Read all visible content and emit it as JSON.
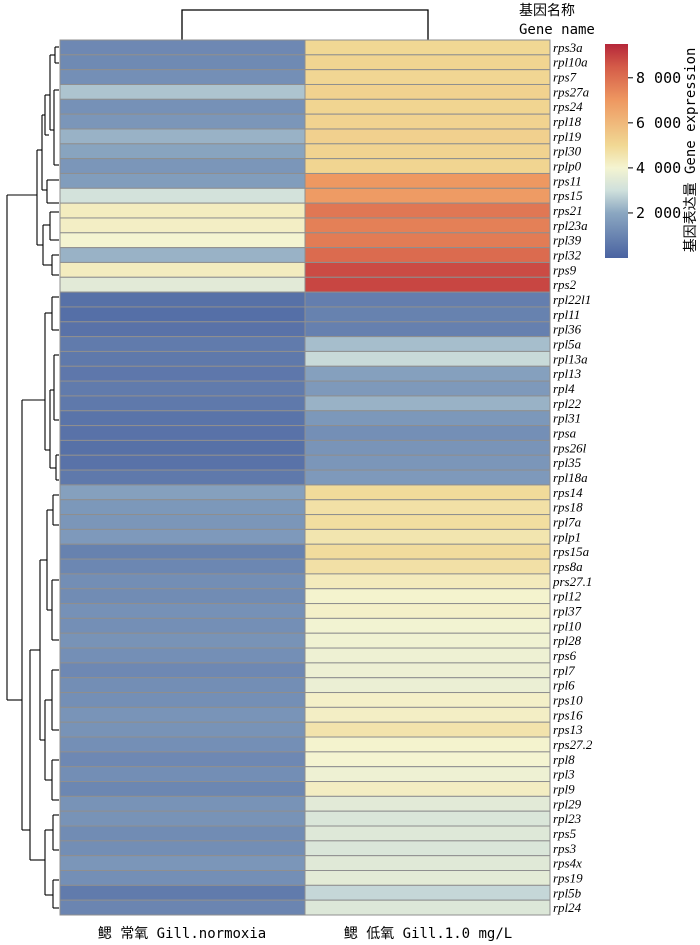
{
  "chart_data": {
    "type": "heatmap",
    "header_cn": "基因名称",
    "header_en": "Gene name",
    "columns": [
      "鳃 常氧 Gill.normoxia",
      "鳃 低氧 Gill.1.0 mg/L"
    ],
    "genes": [
      "rps3a",
      "rpl10a",
      "rps7",
      "rps27a",
      "rps24",
      "rpl18",
      "rpl19",
      "rpl30",
      "rplp0",
      "rps11",
      "rps15",
      "rps21",
      "rpl23a",
      "rpl39",
      "rpl32",
      "rps9",
      "rps2",
      "rpl22l1",
      "rpl11",
      "rpl36",
      "rpl5a",
      "rpl13a",
      "rpl13",
      "rpl4",
      "rpl22",
      "rpl31",
      "rpsa",
      "rps26l",
      "rpl35",
      "rpl18a",
      "rps14",
      "rps18",
      "rpl7a",
      "rplp1",
      "rps15a",
      "rps8a",
      "prs27.1",
      "rpl12",
      "rpl37",
      "rpl10",
      "rpl28",
      "rps6",
      "rpl7",
      "rpl6",
      "rps10",
      "rps16",
      "rps13",
      "rps27.2",
      "rpl8",
      "rpl3",
      "rpl9",
      "rpl29",
      "rpl23",
      "rps5",
      "rps3",
      "rps4x",
      "rps19",
      "rpl5b",
      "rpl24"
    ],
    "values": [
      [
        1100,
        5000
      ],
      [
        1150,
        5100
      ],
      [
        1300,
        5050
      ],
      [
        2500,
        5200
      ],
      [
        1350,
        5100
      ],
      [
        1500,
        5150
      ],
      [
        2200,
        5250
      ],
      [
        1900,
        5150
      ],
      [
        1500,
        5100
      ],
      [
        1700,
        7000
      ],
      [
        3100,
        6900
      ],
      [
        4300,
        7800
      ],
      [
        4200,
        7600
      ],
      [
        4000,
        7700
      ],
      [
        2200,
        8100
      ],
      [
        4300,
        8800
      ],
      [
        3500,
        8900
      ],
      [
        400,
        800
      ],
      [
        350,
        900
      ],
      [
        450,
        850
      ],
      [
        700,
        2400
      ],
      [
        650,
        2900
      ],
      [
        600,
        1800
      ],
      [
        700,
        1600
      ],
      [
        650,
        2200
      ],
      [
        500,
        1550
      ],
      [
        450,
        1300
      ],
      [
        400,
        1450
      ],
      [
        450,
        1500
      ],
      [
        650,
        1600
      ],
      [
        1800,
        4900
      ],
      [
        1550,
        4700
      ],
      [
        1500,
        4800
      ],
      [
        1600,
        4550
      ],
      [
        900,
        4850
      ],
      [
        1050,
        4700
      ],
      [
        1250,
        4350
      ],
      [
        1200,
        4050
      ],
      [
        1350,
        4150
      ],
      [
        1300,
        3950
      ],
      [
        1400,
        3900
      ],
      [
        1300,
        3850
      ],
      [
        1100,
        3800
      ],
      [
        1250,
        3750
      ],
      [
        1300,
        4150
      ],
      [
        1450,
        4200
      ],
      [
        1400,
        4600
      ],
      [
        1300,
        4050
      ],
      [
        1100,
        4000
      ],
      [
        1250,
        3850
      ],
      [
        1050,
        4250
      ],
      [
        1400,
        3500
      ],
      [
        1400,
        3300
      ],
      [
        1200,
        3400
      ],
      [
        1250,
        3300
      ],
      [
        1500,
        3450
      ],
      [
        1300,
        3550
      ],
      [
        700,
        2850
      ],
      [
        1000,
        3350
      ]
    ],
    "colorscale": {
      "min": 0,
      "max": 9500,
      "stops": [
        {
          "value": 0,
          "color": "#4a63a1"
        },
        {
          "value": 2000,
          "color": "#8ba7c1"
        },
        {
          "value": 3000,
          "color": "#cfe0dc"
        },
        {
          "value": 4000,
          "color": "#f4f4d1"
        },
        {
          "value": 5000,
          "color": "#f1d894"
        },
        {
          "value": 7000,
          "color": "#ee9861"
        },
        {
          "value": 8500,
          "color": "#d45b48"
        },
        {
          "value": 9500,
          "color": "#b5273a"
        }
      ]
    },
    "legend_ticks": [
      {
        "value": 2000,
        "label": "2 000"
      },
      {
        "value": 4000,
        "label": "4 000"
      },
      {
        "value": 6000,
        "label": "6 000"
      },
      {
        "value": 8000,
        "label": "8 000"
      }
    ],
    "legend_title": "基因表达量 Gene expression"
  }
}
